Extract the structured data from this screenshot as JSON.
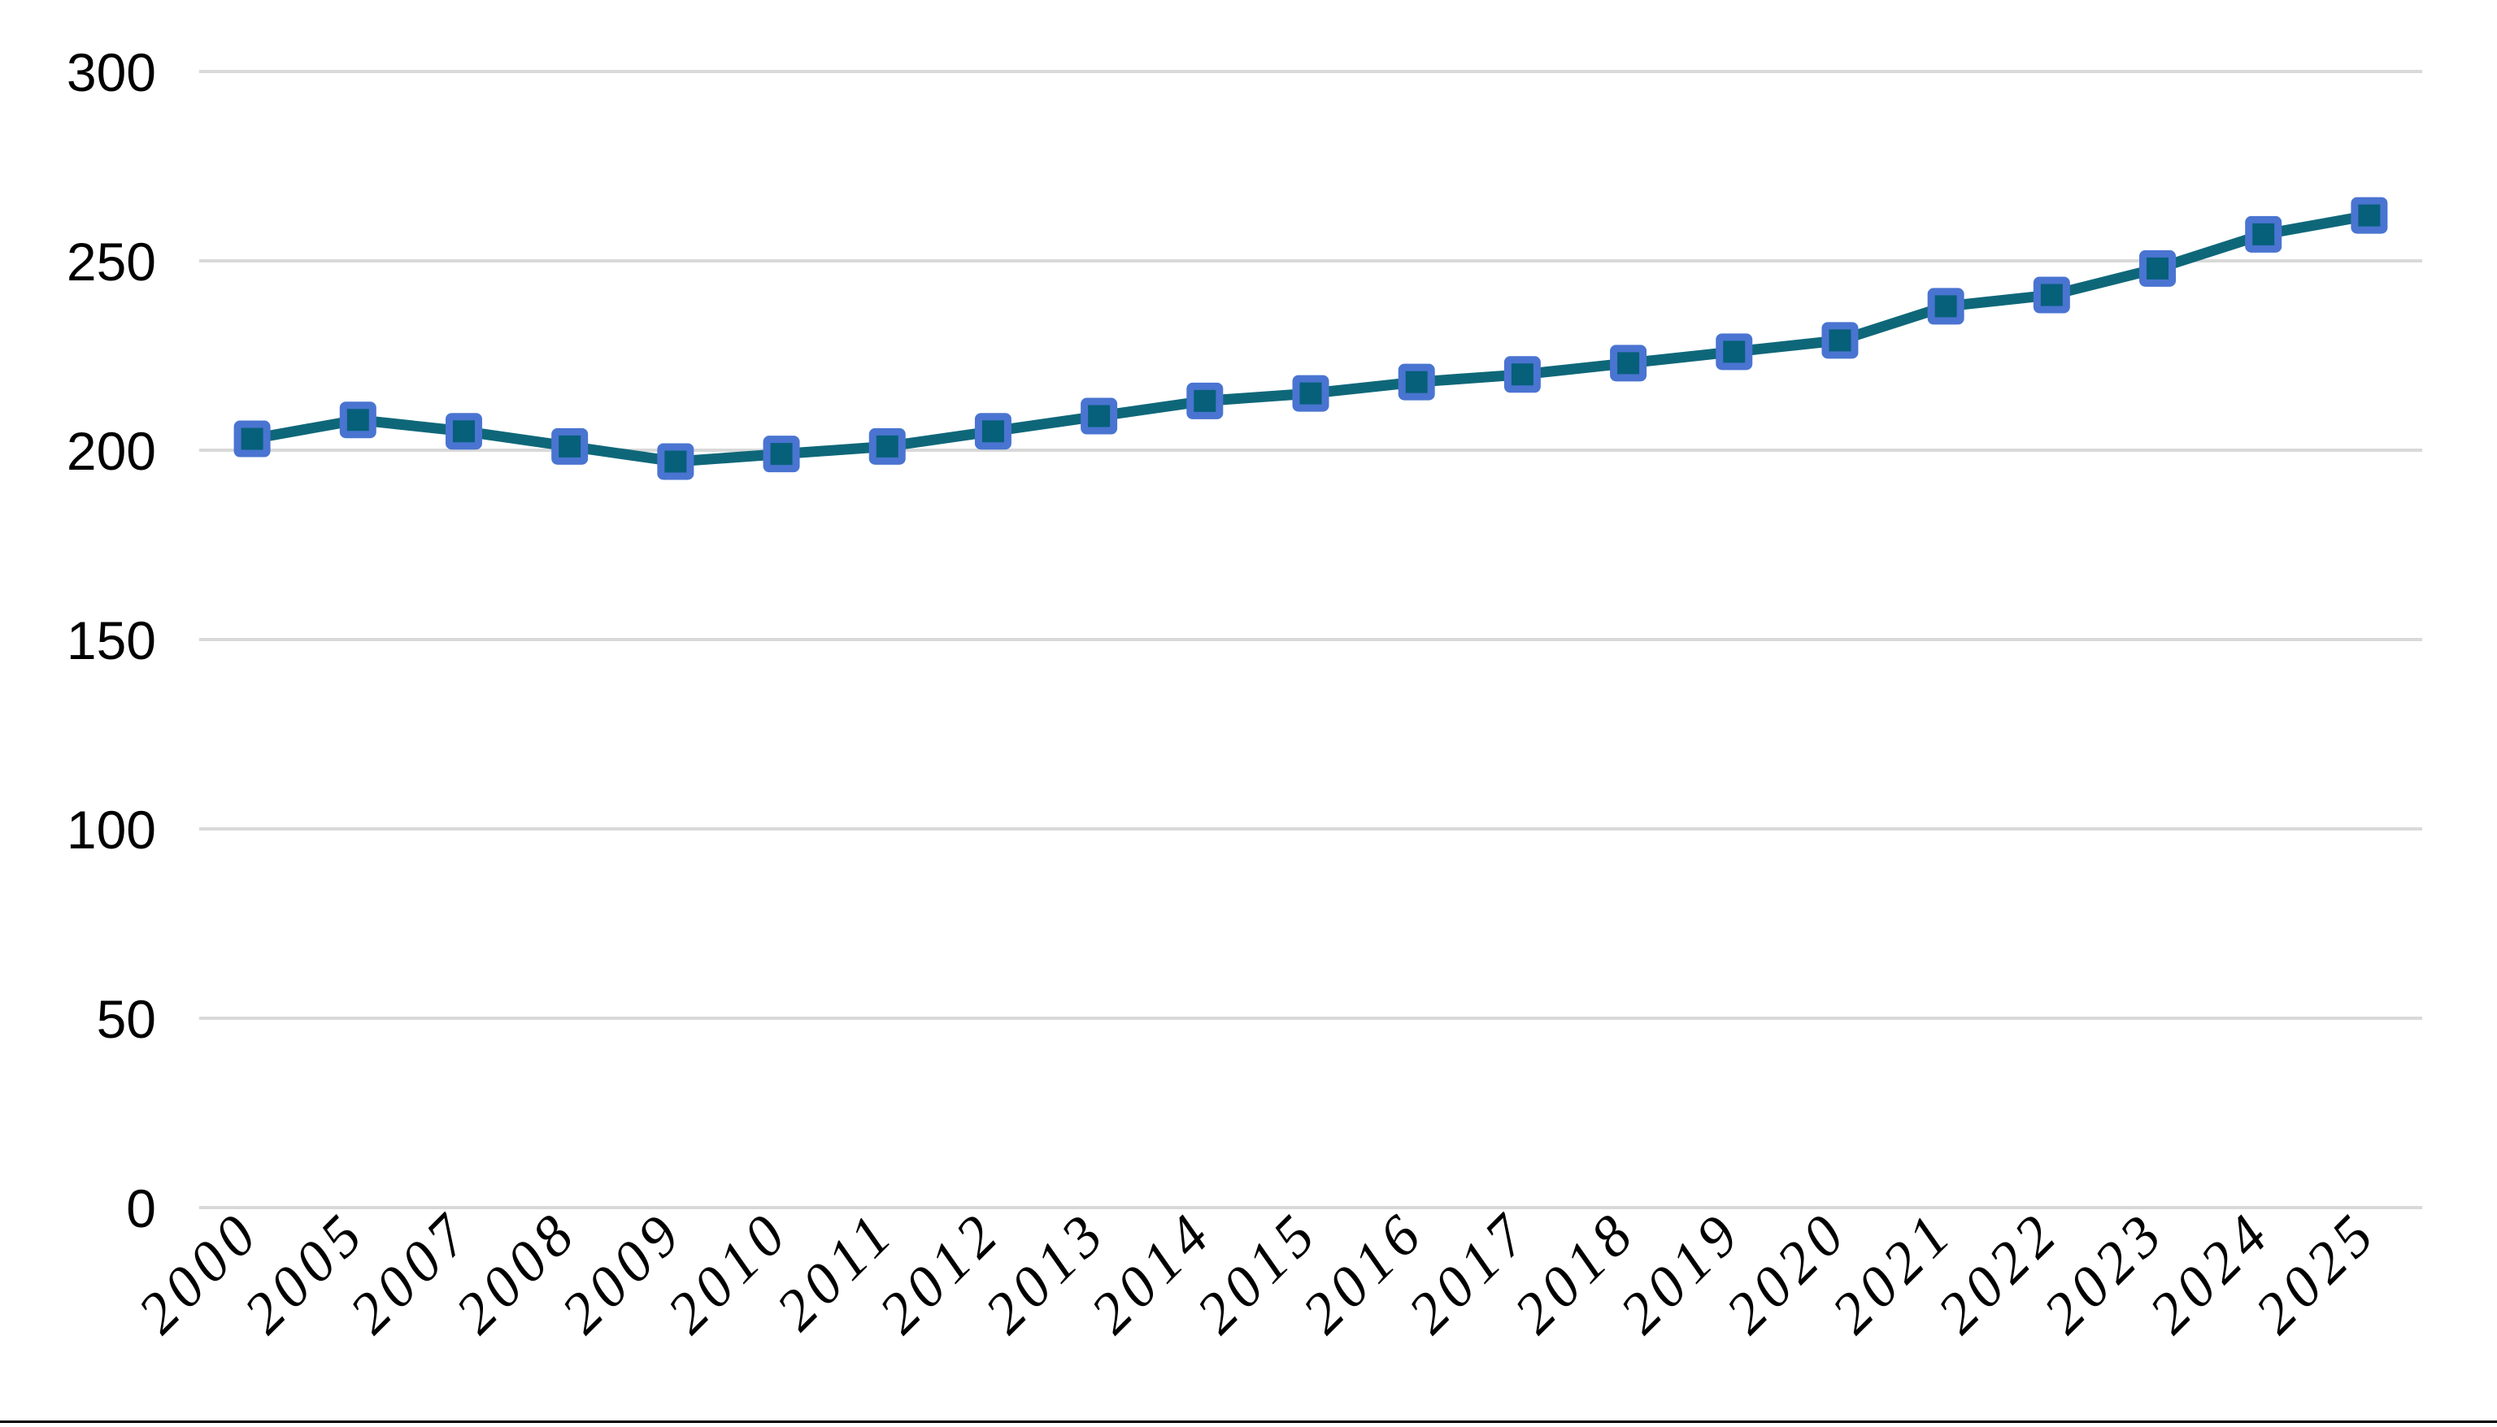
{
  "page": {
    "background": "#FFFFFF",
    "bottom_rule_color": "#000000"
  },
  "chart_data": {
    "type": "line",
    "title": "",
    "xlabel": "",
    "ylabel": "",
    "categories": [
      "2000",
      "2005",
      "2007",
      "2008",
      "2009",
      "2010",
      "2011",
      "2012",
      "2013",
      "2014",
      "2015",
      "2016",
      "2017",
      "2018",
      "2019",
      "2020",
      "2021",
      "2022",
      "2023",
      "2024",
      "2025"
    ],
    "values": [
      203,
      208,
      205,
      201,
      197,
      199,
      201,
      205,
      209,
      213,
      215,
      218,
      220,
      223,
      226,
      229,
      238,
      241,
      248,
      257,
      262
    ],
    "ylim": [
      0,
      300
    ],
    "y_ticks": [
      0,
      50,
      100,
      150,
      200,
      250,
      300
    ],
    "grid": "horizontal",
    "legend": "none",
    "marker": "square",
    "colors": {
      "line": "#0E6779",
      "marker_fill": "#06607A",
      "marker_border": "#4A74D1",
      "gridline": "#D9D9D9",
      "tick_label": "#000000"
    }
  }
}
